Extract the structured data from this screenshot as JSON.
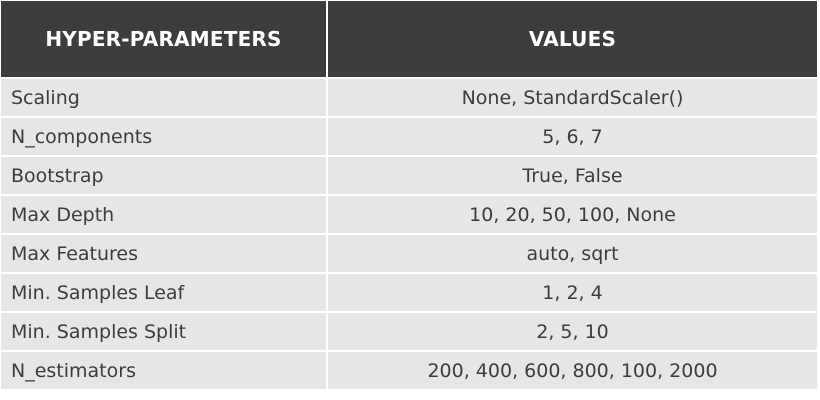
{
  "table": {
    "headers": [
      "HYPER-PARAMETERS",
      "VALUES"
    ],
    "rows": [
      {
        "parameter": "Scaling",
        "values": "None, StandardScaler()"
      },
      {
        "parameter": "N_components",
        "values": "5, 6, 7"
      },
      {
        "parameter": "Bootstrap",
        "values": "True, False"
      },
      {
        "parameter": "Max Depth",
        "values": "10, 20, 50, 100, None"
      },
      {
        "parameter": "Max Features",
        "values": "auto, sqrt"
      },
      {
        "parameter": "Min. Samples Leaf",
        "values": "1, 2, 4"
      },
      {
        "parameter": "Min. Samples Split",
        "values": "2, 5, 10"
      },
      {
        "parameter": "N_estimators",
        "values": "200, 400, 600, 800, 100, 2000"
      }
    ]
  },
  "colors": {
    "header_background": "#3d3d3d",
    "header_text": "#ffffff",
    "cell_background": "#e6e6e6",
    "cell_text": "#3c3c3c"
  }
}
